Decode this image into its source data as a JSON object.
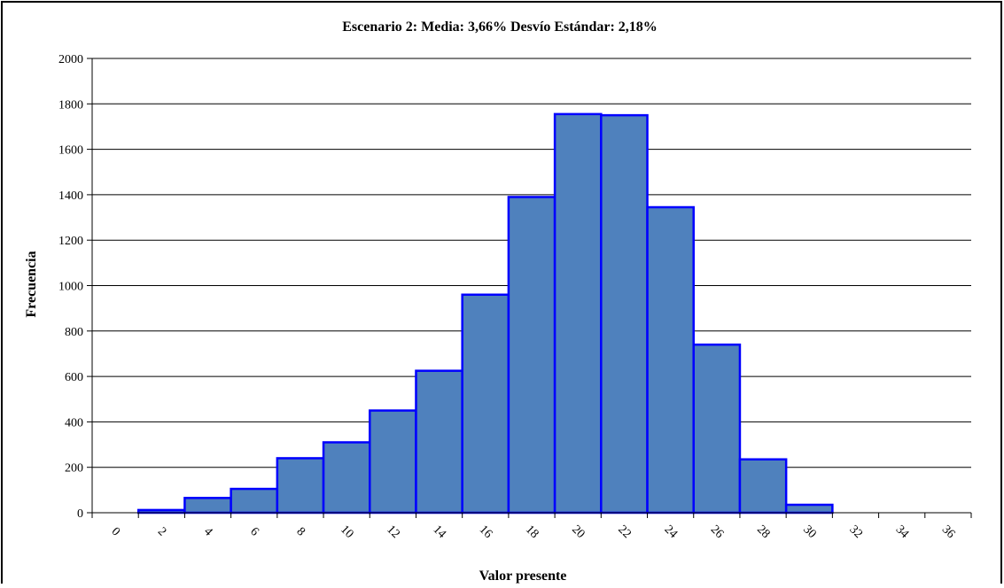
{
  "chart_data": {
    "type": "bar",
    "title": "Escenario 2: Media: 3,66%  Desvío Estándar: 2,18%",
    "xlabel": "Valor presente",
    "ylabel": "Frecuencia",
    "ylim": [
      0,
      2000
    ],
    "yticks": [
      "0",
      "200",
      "400",
      "600",
      "800",
      "1000",
      "1200",
      "1400",
      "1600",
      "1800",
      "2000"
    ],
    "xticks": [
      "0",
      "2",
      "4",
      "6",
      "8",
      "10",
      "12",
      "14",
      "16",
      "18",
      "20",
      "22",
      "24",
      "26",
      "28",
      "30",
      "32",
      "34",
      "36"
    ],
    "categories": [
      "2",
      "4",
      "6",
      "8",
      "10",
      "12",
      "14",
      "16",
      "18",
      "20",
      "22",
      "24",
      "26",
      "28",
      "30",
      "32",
      "34",
      "36"
    ],
    "values": [
      12,
      65,
      105,
      240,
      310,
      450,
      625,
      960,
      1390,
      1755,
      1750,
      1345,
      740,
      235,
      35,
      0,
      0,
      0
    ],
    "grid": true,
    "legend": "none",
    "colors": {
      "bar_fill": "#4F81BD",
      "bar_edge": "#0000FF",
      "grid": "#000000",
      "frame": "#000000"
    }
  }
}
